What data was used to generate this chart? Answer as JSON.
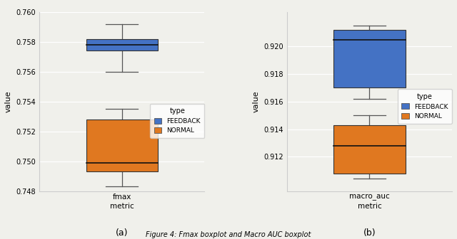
{
  "subplot_a": {
    "title": "(a)",
    "xlabel": "fmax\nmetric",
    "ylabel": "value",
    "feedback": {
      "whisker_low": 0.756,
      "q1": 0.7574,
      "median": 0.7578,
      "q3": 0.7582,
      "whisker_high": 0.7592
    },
    "normal": {
      "whisker_low": 0.7483,
      "q1": 0.7493,
      "median": 0.7499,
      "q3": 0.7528,
      "whisker_high": 0.7535
    },
    "ylim": [
      0.748,
      0.76
    ],
    "yticks": [
      0.748,
      0.75,
      0.752,
      0.754,
      0.756,
      0.758,
      0.76
    ]
  },
  "subplot_b": {
    "title": "(b)",
    "xlabel": "macro_auc\nmetric",
    "ylabel": "value",
    "feedback": {
      "whisker_low": 0.9162,
      "q1": 0.917,
      "median": 0.9205,
      "q3": 0.9212,
      "whisker_high": 0.9215
    },
    "normal": {
      "whisker_low": 0.9104,
      "q1": 0.9108,
      "median": 0.9128,
      "q3": 0.9143,
      "whisker_high": 0.915
    },
    "ylim": [
      0.9095,
      0.9225
    ],
    "yticks": [
      0.912,
      0.914,
      0.916,
      0.918,
      0.92
    ]
  },
  "feedback_color": "#4472c4",
  "normal_color": "#e07820",
  "box_width": 0.65,
  "figure_caption": "Figure 4: Fmax boxplot and Macro AUC boxplot",
  "legend_title": "type",
  "legend_labels": [
    "FEEDBACK",
    "NORMAL"
  ],
  "background_color": "#f0f0eb"
}
